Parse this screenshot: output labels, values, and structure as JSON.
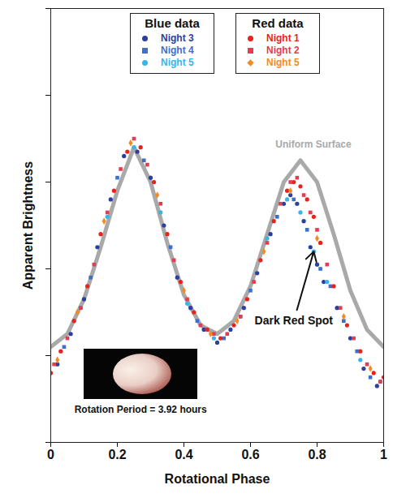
{
  "chart_data": {
    "type": "scatter",
    "x_label": "Rotational Phase",
    "y_label": "Apparent Brightness",
    "xlim": [
      0,
      1
    ],
    "ylim": [
      0,
      1
    ],
    "xticks": [
      0,
      0.2,
      0.4,
      0.6,
      0.8,
      1
    ],
    "yticks": [
      0,
      0.2,
      0.4,
      0.6,
      0.8,
      1
    ],
    "tick_labels": "x",
    "legend": "top",
    "series": [
      {
        "name": "Night 3",
        "group": "Blue data",
        "color": "#2a3f9e",
        "marker": "circle",
        "x": [
          0.02,
          0.06,
          0.1,
          0.14,
          0.18,
          0.22,
          0.26,
          0.3,
          0.34,
          0.38,
          0.42,
          0.46,
          0.5,
          0.54,
          0.58,
          0.62,
          0.66,
          0.7,
          0.72,
          0.74,
          0.76,
          0.78,
          0.8,
          0.82,
          0.86,
          0.9,
          0.94,
          0.98
        ],
        "values": [
          0.18,
          0.25,
          0.33,
          0.45,
          0.56,
          0.66,
          0.67,
          0.61,
          0.5,
          0.38,
          0.31,
          0.26,
          0.23,
          0.26,
          0.31,
          0.39,
          0.48,
          0.55,
          0.57,
          0.55,
          0.51,
          0.45,
          0.41,
          0.37,
          0.31,
          0.24,
          0.17,
          0.13
        ]
      },
      {
        "name": "Night 4",
        "group": "Blue data",
        "color": "#3d6fcf",
        "marker": "square",
        "x": [
          0.04,
          0.12,
          0.2,
          0.28,
          0.36,
          0.44,
          0.52,
          0.6,
          0.68,
          0.73,
          0.77,
          0.81,
          0.84,
          0.88,
          0.92,
          0.96
        ],
        "values": [
          0.22,
          0.38,
          0.61,
          0.65,
          0.45,
          0.28,
          0.24,
          0.35,
          0.52,
          0.56,
          0.49,
          0.4,
          0.36,
          0.28,
          0.21,
          0.15
        ]
      },
      {
        "name": "Night 5",
        "group": "Blue data",
        "color": "#35b6ea",
        "marker": "circle",
        "x": [
          0.09,
          0.17,
          0.25,
          0.33,
          0.41,
          0.49,
          0.57,
          0.65,
          0.71,
          0.75,
          0.79,
          0.83,
          0.93,
          0.99
        ],
        "values": [
          0.31,
          0.52,
          0.68,
          0.53,
          0.32,
          0.24,
          0.29,
          0.47,
          0.56,
          0.53,
          0.44,
          0.37,
          0.19,
          0.14
        ]
      },
      {
        "name": "Night 1",
        "group": "Red data",
        "color": "#e8231e",
        "marker": "circle",
        "x": [
          0,
          0.03,
          0.07,
          0.11,
          0.15,
          0.19,
          0.23,
          0.27,
          0.31,
          0.35,
          0.39,
          0.43,
          0.47,
          0.51,
          0.55,
          0.59,
          0.63,
          0.67,
          0.71,
          0.73,
          0.75,
          0.77,
          0.79,
          0.81,
          0.85,
          0.89,
          0.93,
          0.97,
          1
        ],
        "values": [
          0.16,
          0.21,
          0.28,
          0.36,
          0.48,
          0.58,
          0.67,
          0.68,
          0.6,
          0.48,
          0.37,
          0.3,
          0.26,
          0.24,
          0.27,
          0.33,
          0.42,
          0.51,
          0.58,
          0.6,
          0.59,
          0.56,
          0.52,
          0.46,
          0.36,
          0.27,
          0.21,
          0.16,
          0.15
        ]
      },
      {
        "name": "Night 2",
        "group": "Red data",
        "color": "#e23d52",
        "marker": "square",
        "x": [
          0.01,
          0.05,
          0.09,
          0.13,
          0.17,
          0.21,
          0.25,
          0.29,
          0.33,
          0.37,
          0.41,
          0.45,
          0.49,
          0.53,
          0.57,
          0.61,
          0.65,
          0.69,
          0.72,
          0.74,
          0.76,
          0.78,
          0.8,
          0.83,
          0.87,
          0.91,
          0.95,
          0.99
        ],
        "values": [
          0.18,
          0.24,
          0.31,
          0.41,
          0.53,
          0.63,
          0.7,
          0.64,
          0.55,
          0.42,
          0.33,
          0.27,
          0.25,
          0.25,
          0.29,
          0.37,
          0.46,
          0.55,
          0.6,
          0.61,
          0.57,
          0.53,
          0.49,
          0.41,
          0.31,
          0.24,
          0.18,
          0.14
        ]
      },
      {
        "name": "Night 5",
        "group": "Red data",
        "color": "#f58a1f",
        "marker": "diamond",
        "x": [
          0.02,
          0.08,
          0.16,
          0.24,
          0.32,
          0.4,
          0.48,
          0.56,
          0.64,
          0.72,
          0.8,
          0.88,
          0.96
        ],
        "values": [
          0.19,
          0.3,
          0.51,
          0.69,
          0.57,
          0.35,
          0.25,
          0.28,
          0.44,
          0.58,
          0.47,
          0.29,
          0.17
        ]
      },
      {
        "name": "Uniform Surface",
        "type": "line",
        "color": "#a9a9a9",
        "line_style": "solid",
        "x": [
          0,
          0.05,
          0.1,
          0.15,
          0.2,
          0.25,
          0.3,
          0.35,
          0.4,
          0.45,
          0.5,
          0.55,
          0.6,
          0.65,
          0.7,
          0.75,
          0.8,
          0.85,
          0.9,
          0.95,
          1
        ],
        "values": [
          0.22,
          0.25,
          0.33,
          0.45,
          0.58,
          0.68,
          0.6,
          0.46,
          0.34,
          0.27,
          0.25,
          0.28,
          0.36,
          0.48,
          0.6,
          0.65,
          0.6,
          0.48,
          0.35,
          0.26,
          0.22
        ]
      }
    ],
    "annotations": [
      {
        "text": "Dark Red Spot",
        "x": 0.73,
        "y": 0.28,
        "arrow_to": [
          0.79,
          0.44
        ]
      },
      {
        "text": "Rotation Period = 3.92 hours",
        "x": 0.27,
        "y": 0.075
      }
    ]
  }
}
